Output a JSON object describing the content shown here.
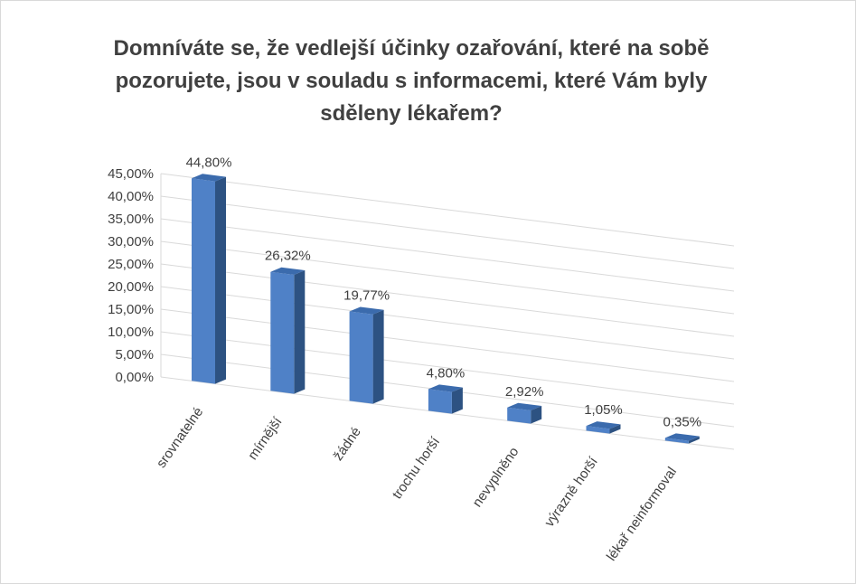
{
  "chart_data": {
    "type": "bar",
    "title_lines": [
      "Domníváte se, že vedlejší účinky ozařování, které na sobě",
      "pozorujete, jsou v souladu s informacemi, které Vám byly",
      "sděleny lékařem?"
    ],
    "categories": [
      "srovnatelné",
      "mírnější",
      "žádné",
      "trochu horší",
      "nevyplněno",
      "výrazně horší",
      "lékař neinformoval"
    ],
    "values": [
      44.8,
      26.32,
      19.77,
      4.8,
      2.92,
      1.05,
      0.35
    ],
    "data_labels": [
      "44,80%",
      "26,32%",
      "19,77%",
      "4,80%",
      "2,92%",
      "1,05%",
      "0,35%"
    ],
    "y_ticks": [
      "0,00%",
      "5,00%",
      "10,00%",
      "15,00%",
      "20,00%",
      "25,00%",
      "30,00%",
      "35,00%",
      "40,00%",
      "45,00%"
    ],
    "ylim": [
      0,
      45
    ],
    "grid": true,
    "legend": "none",
    "bar_colors": {
      "front": "#4f81c7",
      "side": "#2d5282",
      "top": "#3b6bad"
    },
    "grid_color": "#d9d9d9"
  }
}
